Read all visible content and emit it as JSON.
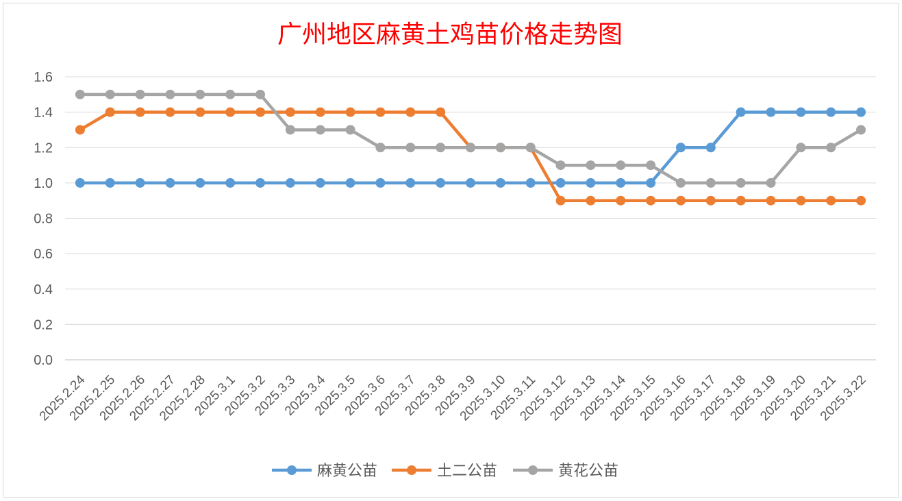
{
  "chart_data": {
    "type": "line",
    "title": "广州地区麻黄土鸡苗价格走势图",
    "xlabel": "",
    "ylabel": "",
    "ylim": [
      0,
      1.6
    ],
    "yticks": [
      "0.0",
      "0.2",
      "0.4",
      "0.6",
      "0.8",
      "1.0",
      "1.2",
      "1.4",
      "1.6"
    ],
    "grid": true,
    "legend": "bottom",
    "categories": [
      "2025.2.24",
      "2025.2.25",
      "2025.2.26",
      "2025.2.27",
      "2025.2.28",
      "2025.3.1",
      "2025.3.2",
      "2025.3.3",
      "2025.3.4",
      "2025.3.5",
      "2025.3.6",
      "2025.3.7",
      "2025.3.8",
      "2025.3.9",
      "2025.3.10",
      "2025.3.11",
      "2025.3.12",
      "2025.3.13",
      "2025.3.14",
      "2025.3.15",
      "2025.3.16",
      "2025.3.17",
      "2025.3.18",
      "2025.3.19",
      "2025.3.20",
      "2025.3.21",
      "2025.3.22"
    ],
    "series": [
      {
        "name": "麻黄公苗",
        "color": "#5b9bd5",
        "values": [
          1.0,
          1.0,
          1.0,
          1.0,
          1.0,
          1.0,
          1.0,
          1.0,
          1.0,
          1.0,
          1.0,
          1.0,
          1.0,
          1.0,
          1.0,
          1.0,
          1.0,
          1.0,
          1.0,
          1.0,
          1.2,
          1.2,
          1.4,
          1.4,
          1.4,
          1.4,
          1.4
        ]
      },
      {
        "name": "土二公苗",
        "color": "#ed7d31",
        "values": [
          1.3,
          1.4,
          1.4,
          1.4,
          1.4,
          1.4,
          1.4,
          1.4,
          1.4,
          1.4,
          1.4,
          1.4,
          1.4,
          1.2,
          1.2,
          1.2,
          0.9,
          0.9,
          0.9,
          0.9,
          0.9,
          0.9,
          0.9,
          0.9,
          0.9,
          0.9,
          0.9
        ]
      },
      {
        "name": "黄花公苗",
        "color": "#a5a5a5",
        "values": [
          1.5,
          1.5,
          1.5,
          1.5,
          1.5,
          1.5,
          1.5,
          1.3,
          1.3,
          1.3,
          1.2,
          1.2,
          1.2,
          1.2,
          1.2,
          1.2,
          1.1,
          1.1,
          1.1,
          1.1,
          1.0,
          1.0,
          1.0,
          1.0,
          1.2,
          1.2,
          1.3
        ]
      }
    ],
    "title_color": "#ff0000"
  }
}
